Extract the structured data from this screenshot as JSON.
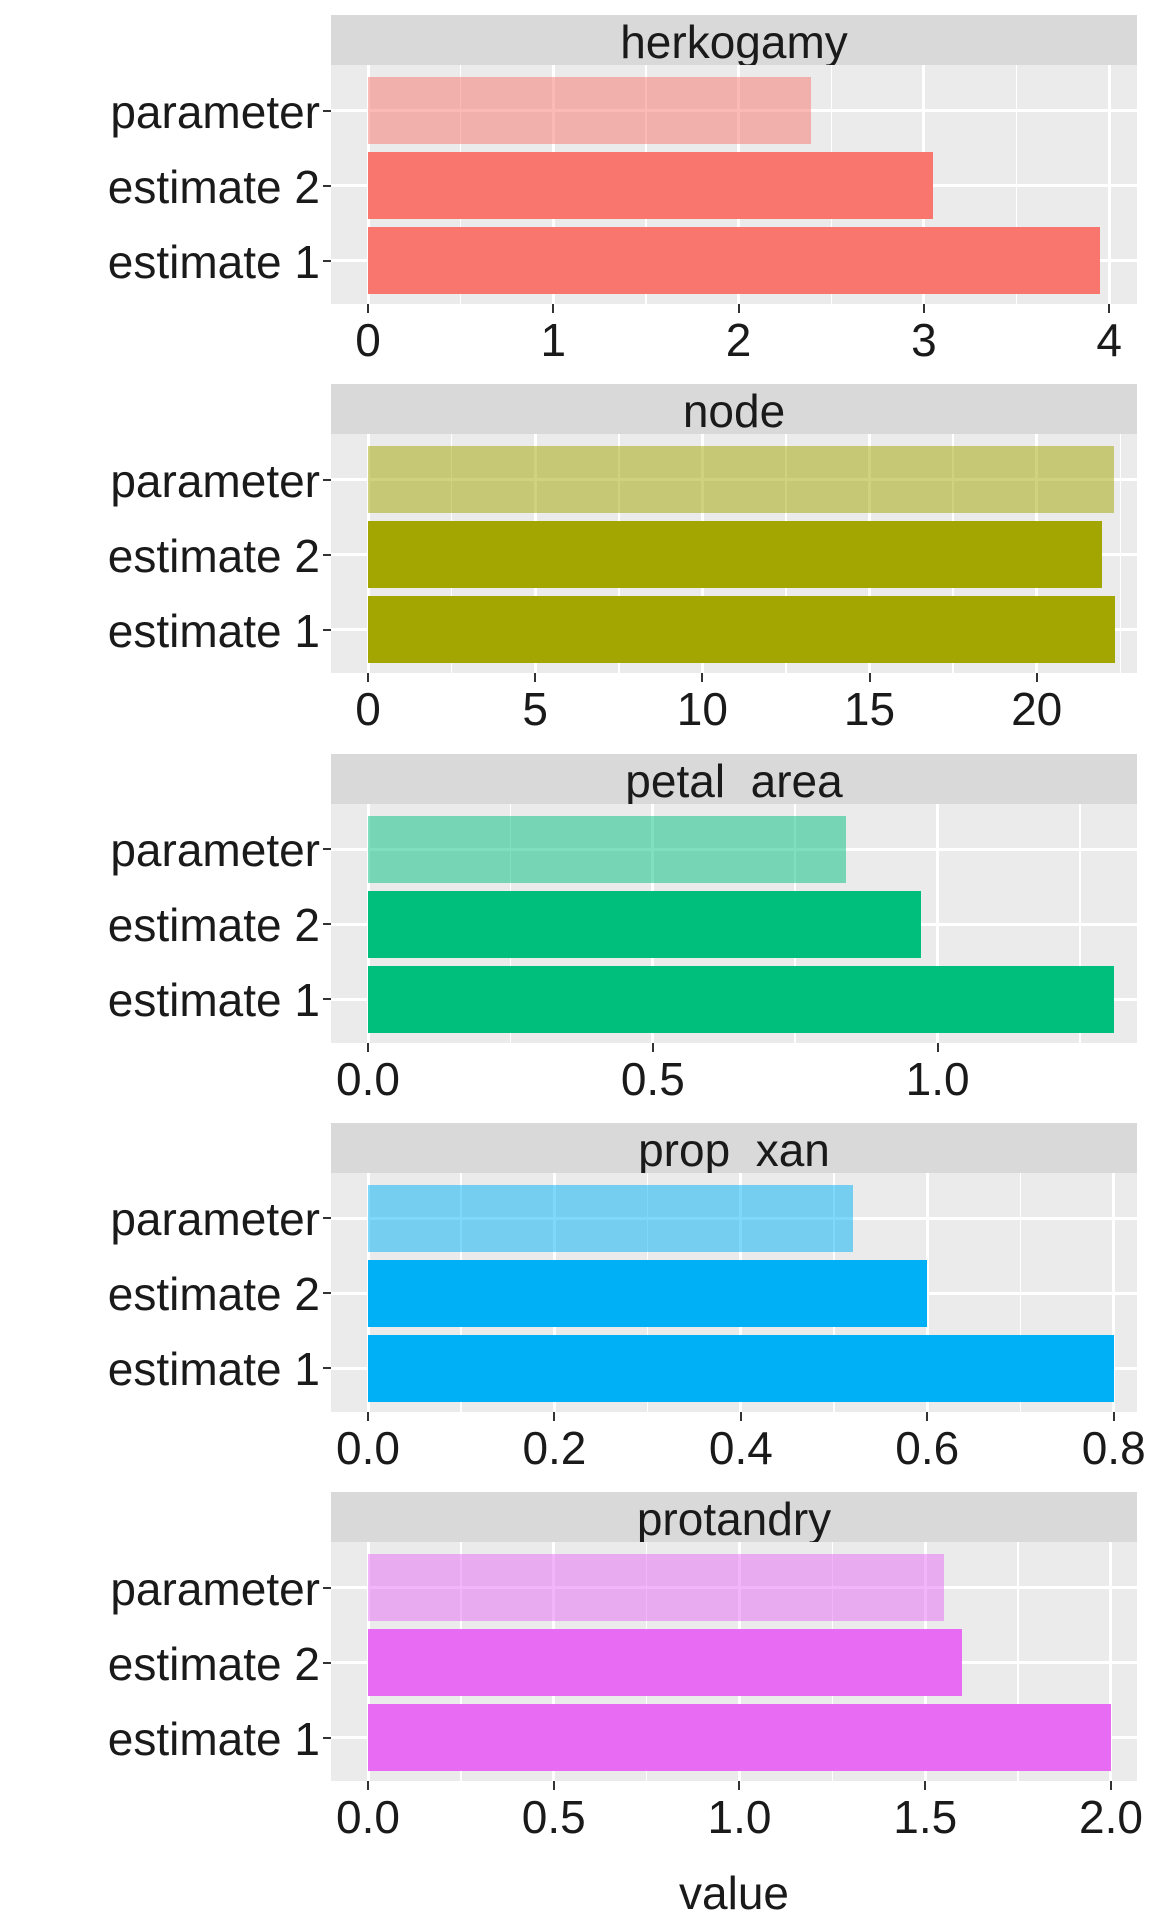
{
  "chart_data": {
    "type": "bar",
    "orientation": "horizontal",
    "layout": "facet_wrap (5 rows, free x scales)",
    "title": "",
    "xlabel": "value",
    "ylabel": "",
    "categories": [
      "parameter",
      "estimate 2",
      "estimate 1"
    ],
    "grid": true,
    "legend": "none",
    "facets": [
      {
        "name": "herkogamy",
        "color": "#F8766D",
        "xticks": [
          "0",
          "1",
          "2",
          "3",
          "4"
        ],
        "xtick_values": [
          0,
          1,
          2,
          3,
          4
        ],
        "xlim": [
          -0.2,
          4.15
        ],
        "values": {
          "parameter": 2.39,
          "estimate 2": 3.05,
          "estimate 1": 3.95
        }
      },
      {
        "name": "node",
        "color": "#A3A500",
        "xticks": [
          "0",
          "5",
          "10",
          "15",
          "20"
        ],
        "xtick_values": [
          0,
          5,
          10,
          15,
          20
        ],
        "xlim": [
          -1.1,
          23.0
        ],
        "values": {
          "parameter": 22.3,
          "estimate 2": 21.95,
          "estimate 1": 22.35
        }
      },
      {
        "name": "petal  area",
        "color": "#00BF7D",
        "xticks": [
          "0.0",
          "0.5",
          "1.0"
        ],
        "xtick_values": [
          0,
          0.5,
          1.0
        ],
        "xlim": [
          -0.065,
          1.35
        ],
        "values": {
          "parameter": 0.84,
          "estimate 2": 0.97,
          "estimate 1": 1.31
        }
      },
      {
        "name": "prop  xan",
        "color": "#00B0F6",
        "xticks": [
          "0.0",
          "0.2",
          "0.4",
          "0.6",
          "0.8"
        ],
        "xtick_values": [
          0,
          0.2,
          0.4,
          0.6,
          0.8
        ],
        "xlim": [
          -0.04,
          0.825
        ],
        "values": {
          "parameter": 0.52,
          "estimate 2": 0.6,
          "estimate 1": 0.8
        }
      },
      {
        "name": "protandry",
        "color": "#E76BF3",
        "xticks": [
          "0.0",
          "0.5",
          "1.0",
          "1.5",
          "2.0"
        ],
        "xtick_values": [
          0,
          0.5,
          1.0,
          1.5,
          2.0
        ],
        "xlim": [
          -0.1,
          2.07
        ],
        "values": {
          "parameter": 1.55,
          "estimate 2": 1.6,
          "estimate 1": 2.0
        }
      }
    ],
    "note": "parameter bars drawn with reduced opacity (~0.5) of the facet color"
  },
  "labels": {
    "y": [
      "parameter",
      "estimate 2",
      "estimate 1"
    ],
    "x_axis_title": "value"
  }
}
